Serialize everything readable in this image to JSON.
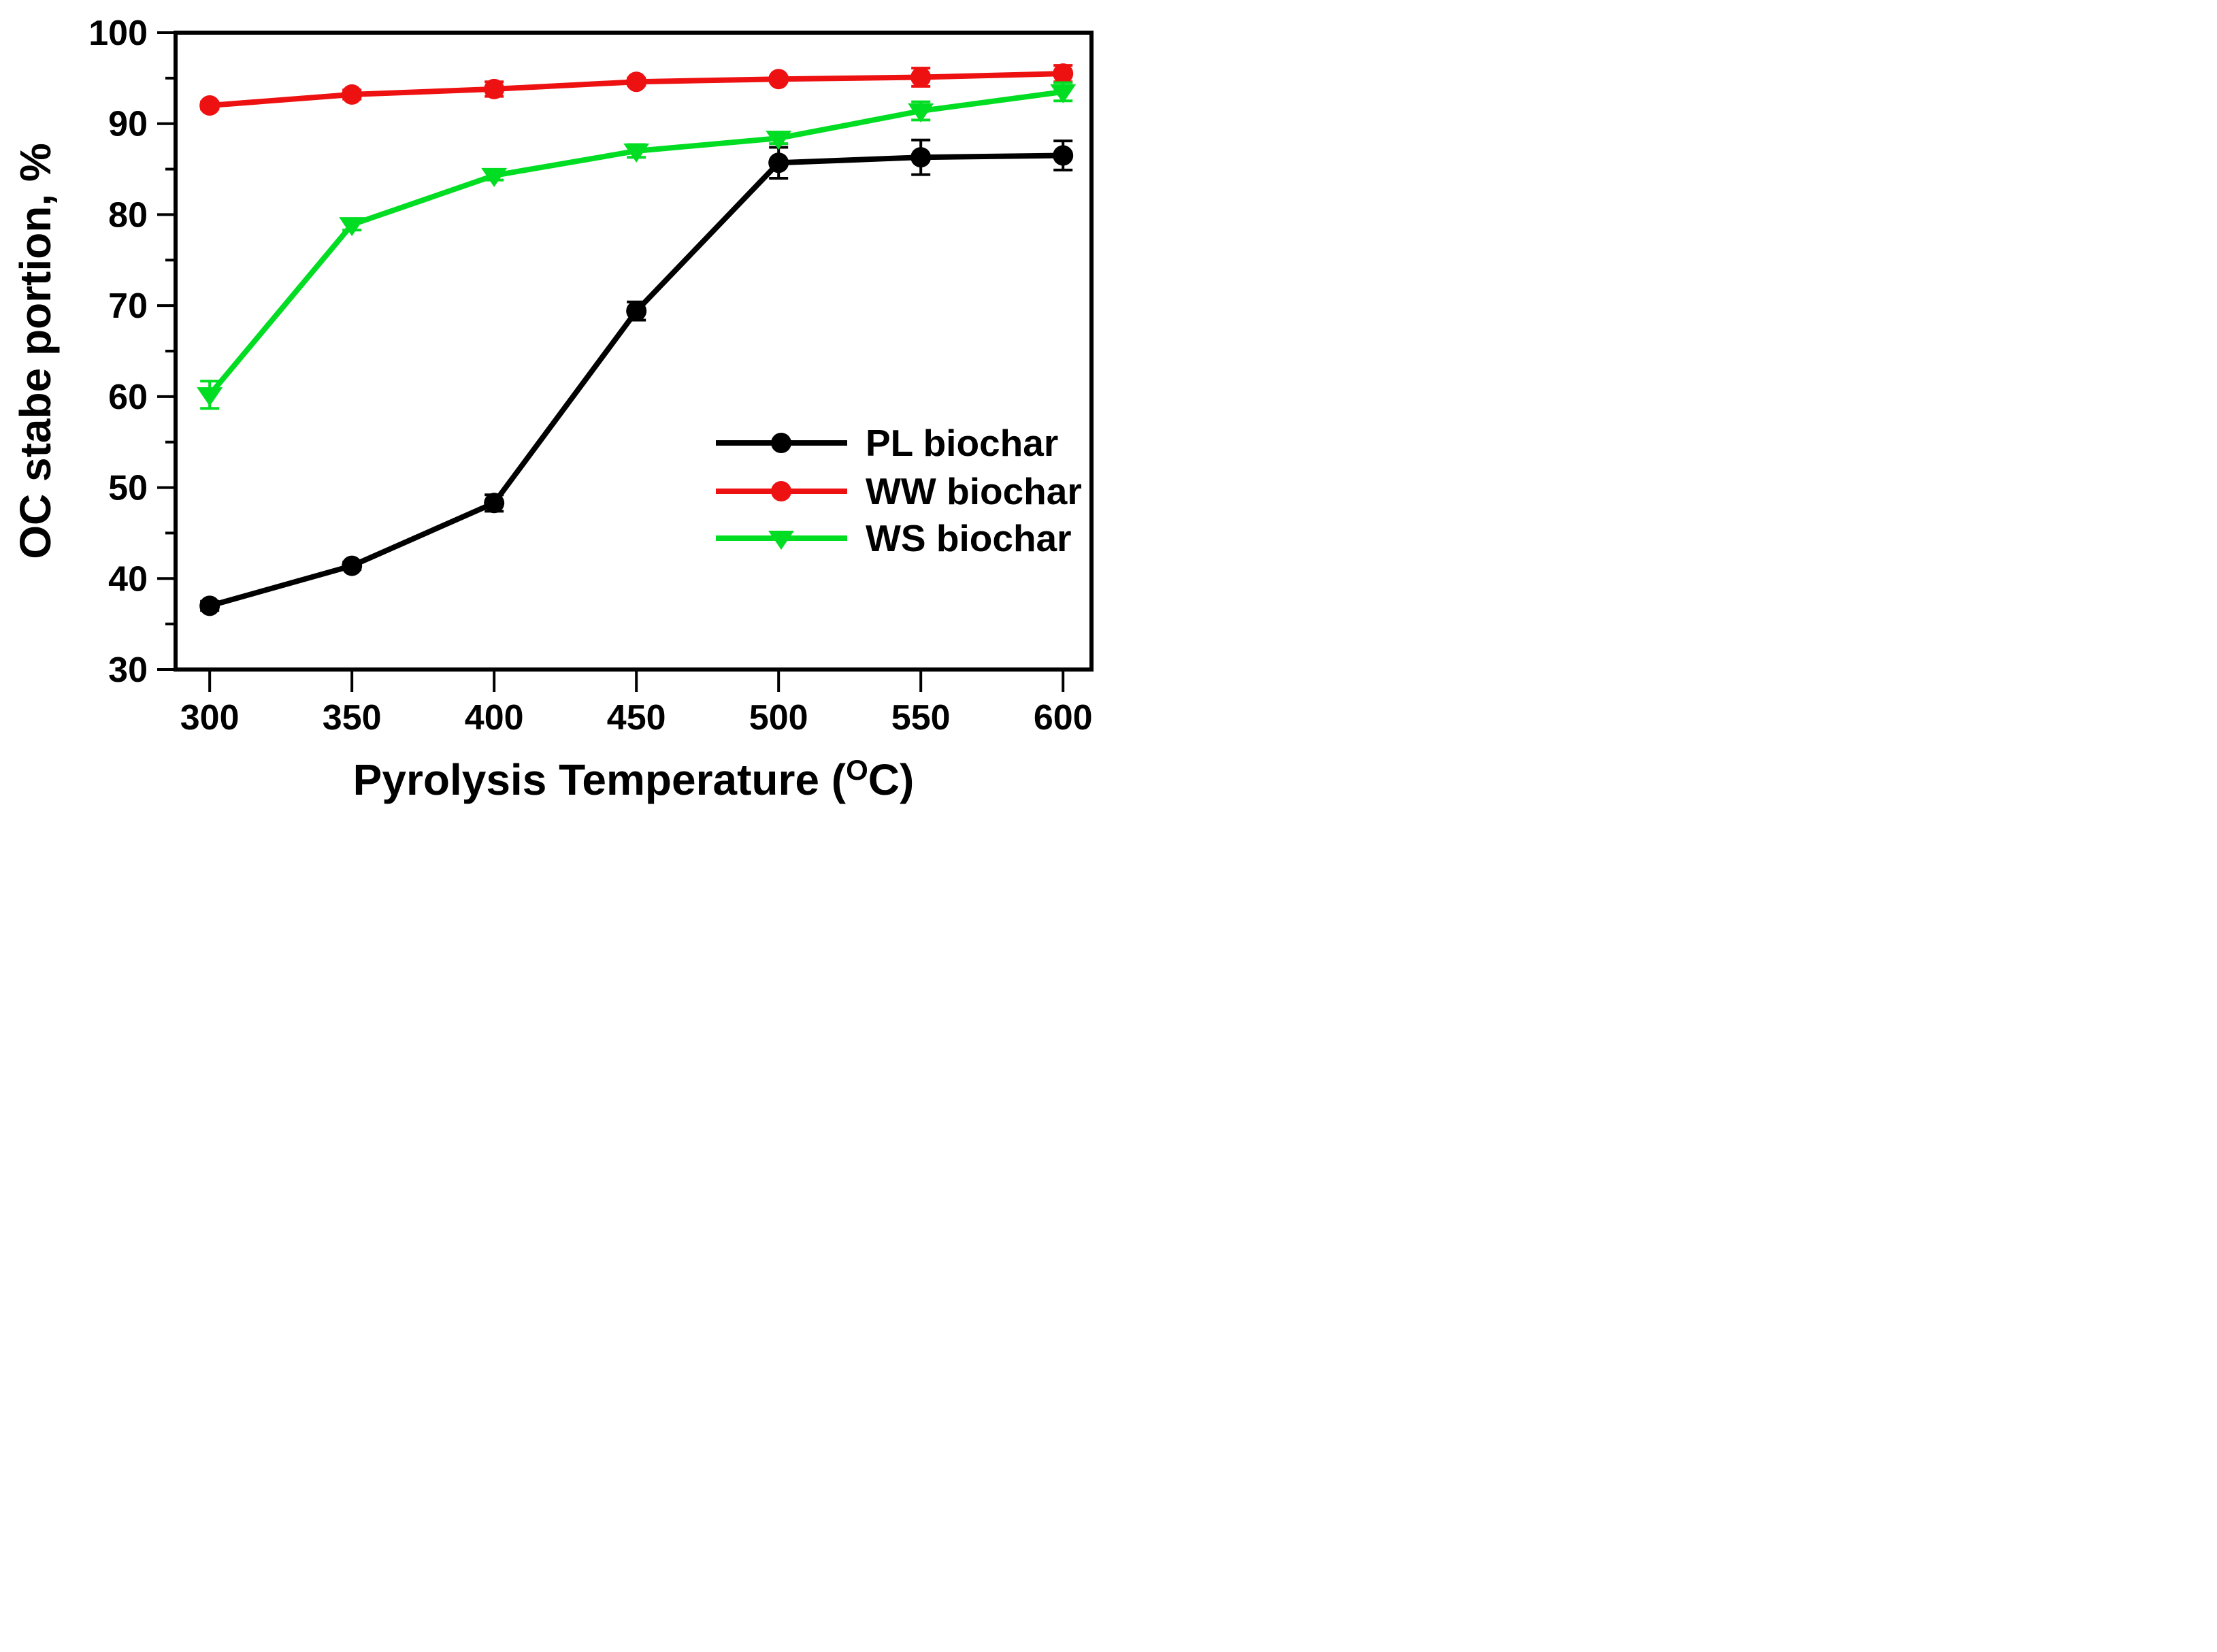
{
  "figure": {
    "background_color": "#ffffff",
    "frame_color": "#000000"
  },
  "chart_data": {
    "type": "line",
    "title": "",
    "xlabel_parts": {
      "pre": "Pyrolysis Temperature (",
      "sup": "O",
      "post": "C)"
    },
    "ylabel": "OC stabe portion, %",
    "x": [
      300,
      350,
      400,
      450,
      500,
      550,
      600
    ],
    "x_tick_labels": [
      "300",
      "350",
      "400",
      "450",
      "500",
      "550",
      "600"
    ],
    "y_tick_labels": [
      "30",
      "40",
      "50",
      "60",
      "70",
      "80",
      "90",
      "100"
    ],
    "xlim": [
      288,
      610
    ],
    "ylim": [
      30,
      100
    ],
    "y_major_step": 10,
    "y_minor_step": 5,
    "grid": "off",
    "legend_position": "inside-right-middle",
    "series": [
      {
        "name": "PL biochar",
        "color": "#000000",
        "marker": "circle",
        "values": [
          37.0,
          41.4,
          48.3,
          69.4,
          85.7,
          86.3,
          86.5
        ],
        "errors": [
          0.5,
          0.4,
          0.9,
          1.0,
          1.7,
          1.9,
          1.6
        ]
      },
      {
        "name": "WW biochar",
        "color": "#ee1111",
        "marker": "circle",
        "values": [
          92.0,
          93.2,
          93.8,
          94.6,
          94.9,
          95.1,
          95.5
        ],
        "errors": [
          0.4,
          0.5,
          0.8,
          0.4,
          0.3,
          1.0,
          0.9
        ]
      },
      {
        "name": "WS biochar",
        "color": "#00dd22",
        "marker": "triangle-down",
        "values": [
          60.2,
          78.9,
          84.3,
          87.0,
          88.4,
          91.4,
          93.5
        ],
        "errors": [
          1.5,
          0.6,
          0.5,
          0.7,
          0.6,
          1.0,
          1.0
        ]
      }
    ]
  }
}
